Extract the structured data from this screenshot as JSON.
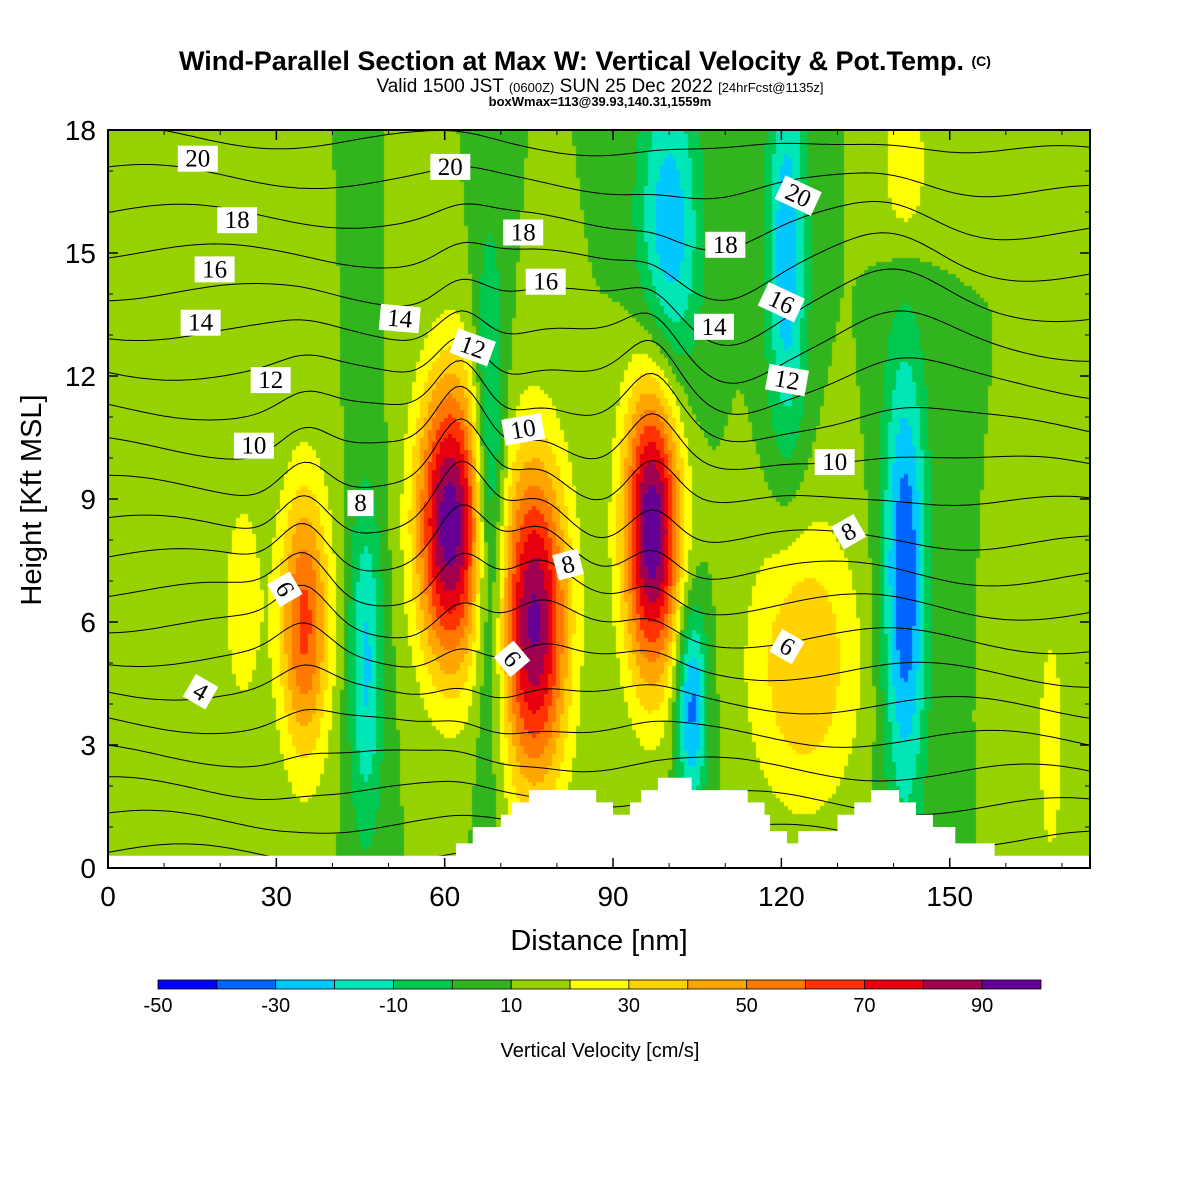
{
  "chart_data": {
    "type": "heatmap",
    "title": "Wind-Parallel Section at Max W: Vertical Velocity & Pot.Temp.",
    "title_mark": "(C)",
    "subtitle": {
      "pre": "Valid 1500 JST",
      "utc": "(0600Z)",
      "date": "SUN 25 Dec 2022",
      "run": "[24hrFcst@1135z]"
    },
    "subtitle2": "boxWmax=113@39.93,140.31,1559m",
    "xlabel": "Distance [nm]",
    "ylabel": "Height [Kft MSL]",
    "xlim": [
      0,
      175
    ],
    "ylim": [
      0,
      18
    ],
    "x_ticks": [
      "0",
      "30",
      "60",
      "90",
      "120",
      "150"
    ],
    "y_ticks": [
      "0",
      "3",
      "6",
      "9",
      "12",
      "15",
      "18"
    ],
    "colorbar": {
      "label": "Vertical Velocity [cm/s]",
      "range": [
        -50,
        100
      ],
      "tick_labels": [
        "-50",
        "-30",
        "-10",
        "10",
        "30",
        "50",
        "70",
        "90"
      ],
      "colors": [
        "#0000ff",
        "#0064ff",
        "#00c8ff",
        "#00e6b4",
        "#00c850",
        "#32b41e",
        "#96d200",
        "#ffff00",
        "#ffd200",
        "#ffa500",
        "#ff7800",
        "#ff3200",
        "#e6000f",
        "#a00050",
        "#640096"
      ]
    },
    "background_w": 10,
    "w_features": [
      {
        "x": 61,
        "z": 8.4,
        "peak": 97,
        "sx": 4.2,
        "sz": 2.5
      },
      {
        "x": 76,
        "z": 6.0,
        "peak": 92,
        "sx": 4.2,
        "sz": 2.8
      },
      {
        "x": 97,
        "z": 8.3,
        "peak": 100,
        "sx": 3.6,
        "sz": 2.6
      },
      {
        "x": 35,
        "z": 6.0,
        "peak": 63,
        "sx": 3.2,
        "sz": 2.4
      },
      {
        "x": 124,
        "z": 5.0,
        "peak": 40,
        "sx": 7.0,
        "sz": 2.5
      },
      {
        "x": 68,
        "z": 9.0,
        "peak": -28,
        "sx": 2.0,
        "sz": 4.0
      },
      {
        "x": 142,
        "z": 7.0,
        "peak": -40,
        "sx": 2.8,
        "sz": 4.0
      },
      {
        "x": 104,
        "z": 4.0,
        "peak": -35,
        "sx": 2.0,
        "sz": 1.8
      },
      {
        "x": 46,
        "z": 5.0,
        "peak": -22,
        "sx": 2.2,
        "sz": 3.0
      },
      {
        "x": 100,
        "z": 15.5,
        "peak": -28,
        "sx": 4.0,
        "sz": 2.8
      },
      {
        "x": 121,
        "z": 15.0,
        "peak": -28,
        "sx": 2.6,
        "sz": 3.5
      },
      {
        "x": 24,
        "z": 6.5,
        "peak": 28,
        "sx": 2.5,
        "sz": 2.0
      },
      {
        "x": 168,
        "z": 3.0,
        "peak": 30,
        "sx": 1.5,
        "sz": 2.0
      },
      {
        "x": 142,
        "z": 17.0,
        "peak": 30,
        "sx": 3.0,
        "sz": 1.5
      }
    ],
    "terrain": [
      [
        0,
        0.3
      ],
      [
        62,
        0.3
      ],
      [
        62,
        0.6
      ],
      [
        65,
        0.6
      ],
      [
        65,
        1.0
      ],
      [
        70,
        1.0
      ],
      [
        70,
        1.3
      ],
      [
        72,
        1.3
      ],
      [
        72,
        1.6
      ],
      [
        75,
        1.6
      ],
      [
        75,
        1.9
      ],
      [
        87,
        1.9
      ],
      [
        87,
        1.6
      ],
      [
        90,
        1.6
      ],
      [
        90,
        1.3
      ],
      [
        93,
        1.3
      ],
      [
        93,
        1.6
      ],
      [
        95,
        1.6
      ],
      [
        95,
        1.9
      ],
      [
        98,
        1.9
      ],
      [
        98,
        2.2
      ],
      [
        104,
        2.2
      ],
      [
        104,
        1.9
      ],
      [
        114,
        1.9
      ],
      [
        114,
        1.6
      ],
      [
        117,
        1.6
      ],
      [
        117,
        1.3
      ],
      [
        118,
        1.3
      ],
      [
        118,
        0.9
      ],
      [
        121,
        0.9
      ],
      [
        121,
        0.6
      ],
      [
        123,
        0.6
      ],
      [
        123,
        0.9
      ],
      [
        130,
        0.9
      ],
      [
        130,
        1.3
      ],
      [
        133,
        1.3
      ],
      [
        133,
        1.6
      ],
      [
        136,
        1.6
      ],
      [
        136,
        1.9
      ],
      [
        141,
        1.9
      ],
      [
        141,
        1.6
      ],
      [
        144,
        1.6
      ],
      [
        144,
        1.3
      ],
      [
        147,
        1.3
      ],
      [
        147,
        1.0
      ],
      [
        151,
        1.0
      ],
      [
        151,
        0.6
      ],
      [
        158,
        0.6
      ],
      [
        158,
        0.3
      ],
      [
        175,
        0.3
      ]
    ],
    "theta_contours": {
      "label_values": [
        "4",
        "6",
        "6",
        "6",
        "6",
        "8",
        "8",
        "8",
        "10",
        "10",
        "10",
        "12",
        "12",
        "12",
        "14",
        "14",
        "14",
        "16",
        "16",
        "16",
        "18",
        "18",
        "18",
        "20",
        "20",
        "20"
      ]
    }
  }
}
